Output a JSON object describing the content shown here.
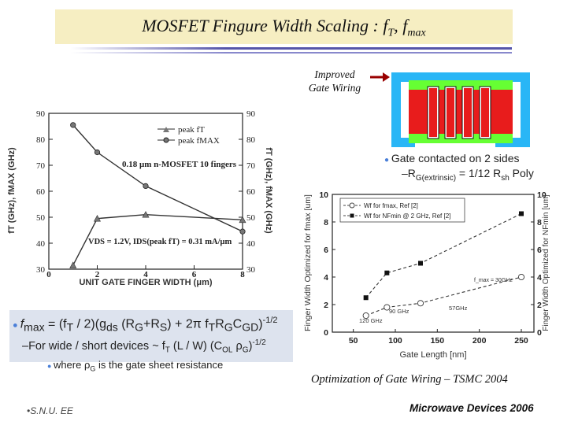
{
  "slide": {
    "title_main": "MOSFET Fingure Width Scaling : f",
    "title_sub_t": "T",
    "title_sep": ", f",
    "title_sub_max": "max",
    "gate_label_line1": "Improved",
    "gate_label_line2": "Gate Wiring",
    "bullet1": "Gate contacted on 2 sides",
    "bullet2_prefix": "–R",
    "bullet2_sub": "G(extrinsic)",
    "bullet2_rest": " = 1/12 R",
    "bullet2_sub2": "sh",
    "bullet2_end": " Poly",
    "formula_line1": "• fmax = (fT / 2)(gds (RG+RS) + 2π fT RG CGD)-1/2",
    "formula_line1_lhs": "f",
    "formula_line1_lhs_sub": "max",
    "formula_line1_eq": " = (f",
    "formula_line1_t": "T",
    "formula_line1_body": " / 2)(g",
    "formula_line1_ds": "ds",
    "formula_line1_body2": " (R",
    "formula_line1_g": "G",
    "formula_line1_plus": "+R",
    "formula_line1_s": "S",
    "formula_line1_body3": ") + 2π f",
    "formula_line1_t2": "T",
    "formula_line1_r": "R",
    "formula_line1_g2": "G",
    "formula_line1_c": "C",
    "formula_line1_gd": "GD",
    "formula_line1_end": ")",
    "formula_line1_exp": "-1/2",
    "formula_line2_a": "–For wide / short devices ~ f",
    "formula_line2_t": "T",
    "formula_line2_b": " (L / W) (C",
    "formula_line2_ol": "OL",
    "formula_line2_c": " ρ",
    "formula_line2_g": "G",
    "formula_line2_d": ")",
    "formula_line2_exp": "-1/2",
    "formula_line3_a": "where ρ",
    "formula_line3_g": "G",
    "formula_line3_b": " is the gate sheet resistance",
    "caption": "Optimization of Gate Wiring – TSMC 2004",
    "footer_left": "S.N.U. EE",
    "footer_right": "Microwave Devices 2006"
  },
  "colors": {
    "title_bg": "#f6eec2",
    "rule_blue": "#5555aa",
    "gate_blue": "#29b6f6",
    "gate_green": "#66ff33",
    "gate_red": "#e81c1c",
    "arrow": "#990000"
  },
  "chart_data": [
    {
      "type": "line",
      "title": "0.18 μm n-MOSFET  10 fingers",
      "xlabel": "UNIT GATE FINGER WIDTH (μm)",
      "ylabel_left": "fT (GHz), fMAX (GHz)",
      "ylabel_right": "fT (GHz), fMAX (GHz)",
      "xlim": [
        0,
        8
      ],
      "ylim": [
        30,
        90
      ],
      "x_ticks": [
        0,
        2,
        4,
        6,
        8
      ],
      "y_ticks": [
        30,
        40,
        50,
        60,
        70,
        80,
        90
      ],
      "annotation": "VDS = 1.2V,  IDS(peak fT) = 0.31 mA/μm",
      "series": [
        {
          "name": "peak fT",
          "marker": "triangle",
          "x": [
            1,
            2,
            4,
            8
          ],
          "y": [
            31.5,
            49.5,
            51,
            49
          ]
        },
        {
          "name": "peak fMAX",
          "marker": "circle",
          "x": [
            1,
            2,
            4,
            8
          ],
          "y": [
            85.5,
            75,
            62,
            44.5
          ]
        }
      ]
    },
    {
      "type": "line",
      "xlabel": "Gate Length [nm]",
      "ylabel_left": "Finger Width Optimized for fmax [um]",
      "ylabel_right": "Finger Width Optimized for NFmin [um]",
      "xlim": [
        25,
        265
      ],
      "ylim": [
        0,
        10
      ],
      "x_ticks": [
        50,
        100,
        150,
        200,
        250
      ],
      "y_ticks": [
        0,
        2,
        4,
        6,
        8,
        10
      ],
      "annotations": [
        "120 GHz",
        "90 GHz",
        "57GHz",
        "f_max = 30GHz"
      ],
      "series": [
        {
          "name": "Wf for fmax, Ref [2]",
          "marker": "circle-open",
          "x": [
            65,
            90,
            130,
            250
          ],
          "y": [
            1.2,
            1.8,
            2.1,
            4.0
          ]
        },
        {
          "name": "Wf for NFmin @ 2 GHz, Ref [2]",
          "marker": "square-filled",
          "x": [
            65,
            90,
            130,
            250
          ],
          "y": [
            2.5,
            4.3,
            5.0,
            8.6
          ]
        }
      ]
    }
  ]
}
